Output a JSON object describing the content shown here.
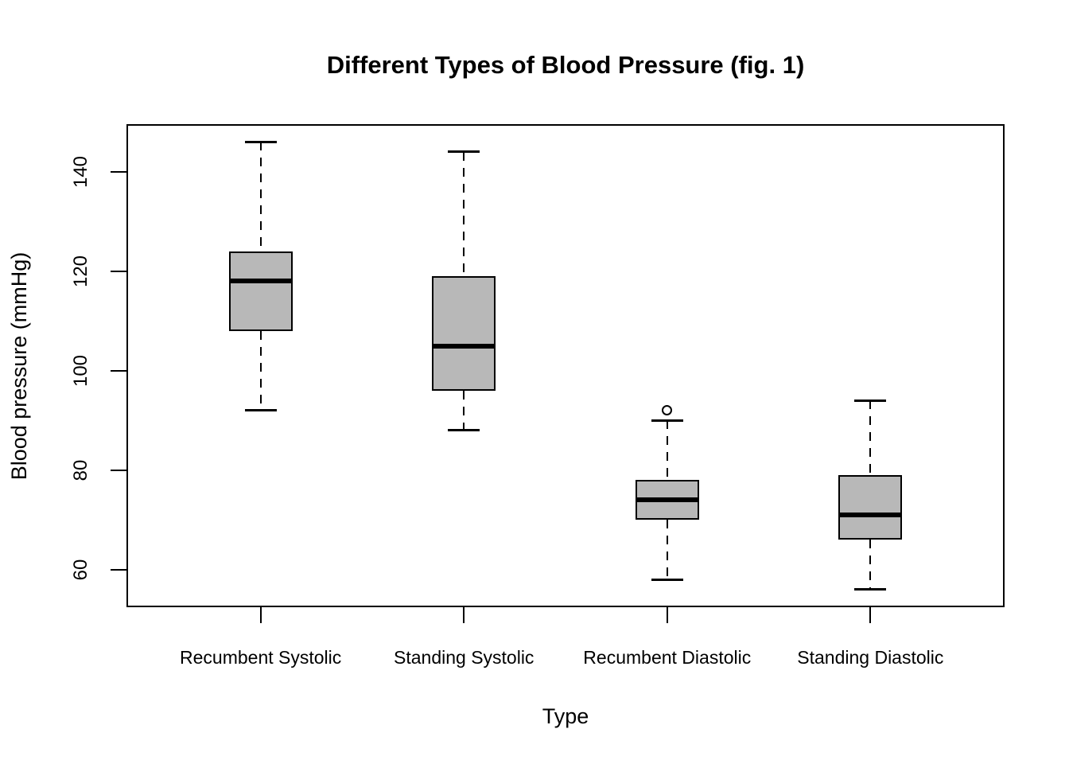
{
  "chart_data": {
    "type": "boxplot",
    "title": "Different Types of Blood Pressure (fig. 1)",
    "xlabel": "Type",
    "ylabel": "Blood pressure (mmHg)",
    "categories": [
      "Recumbent Systolic",
      "Standing Systolic",
      "Recumbent Diastolic",
      "Standing Diastolic"
    ],
    "boxes": [
      {
        "category": "Recumbent Systolic",
        "low": 92,
        "q1": 108,
        "median": 118,
        "q3": 124,
        "high": 146,
        "outliers": []
      },
      {
        "category": "Standing Systolic",
        "low": 88,
        "q1": 96,
        "median": 105,
        "q3": 119,
        "high": 144,
        "outliers": []
      },
      {
        "category": "Recumbent Diastolic",
        "low": 58,
        "q1": 70,
        "median": 74,
        "q3": 78,
        "high": 90,
        "outliers": [
          92
        ]
      },
      {
        "category": "Standing Diastolic",
        "low": 56,
        "q1": 66,
        "median": 71,
        "q3": 79,
        "high": 94,
        "outliers": []
      }
    ],
    "yticks": [
      60,
      80,
      100,
      120,
      140
    ],
    "ylim": [
      52.4,
      149.6
    ],
    "xlim": [
      0.34,
      4.66
    ],
    "grid": false,
    "legend": null,
    "colors": {
      "box_fill": "#b8b8b8",
      "stroke": "#000000",
      "background": "#ffffff"
    }
  }
}
